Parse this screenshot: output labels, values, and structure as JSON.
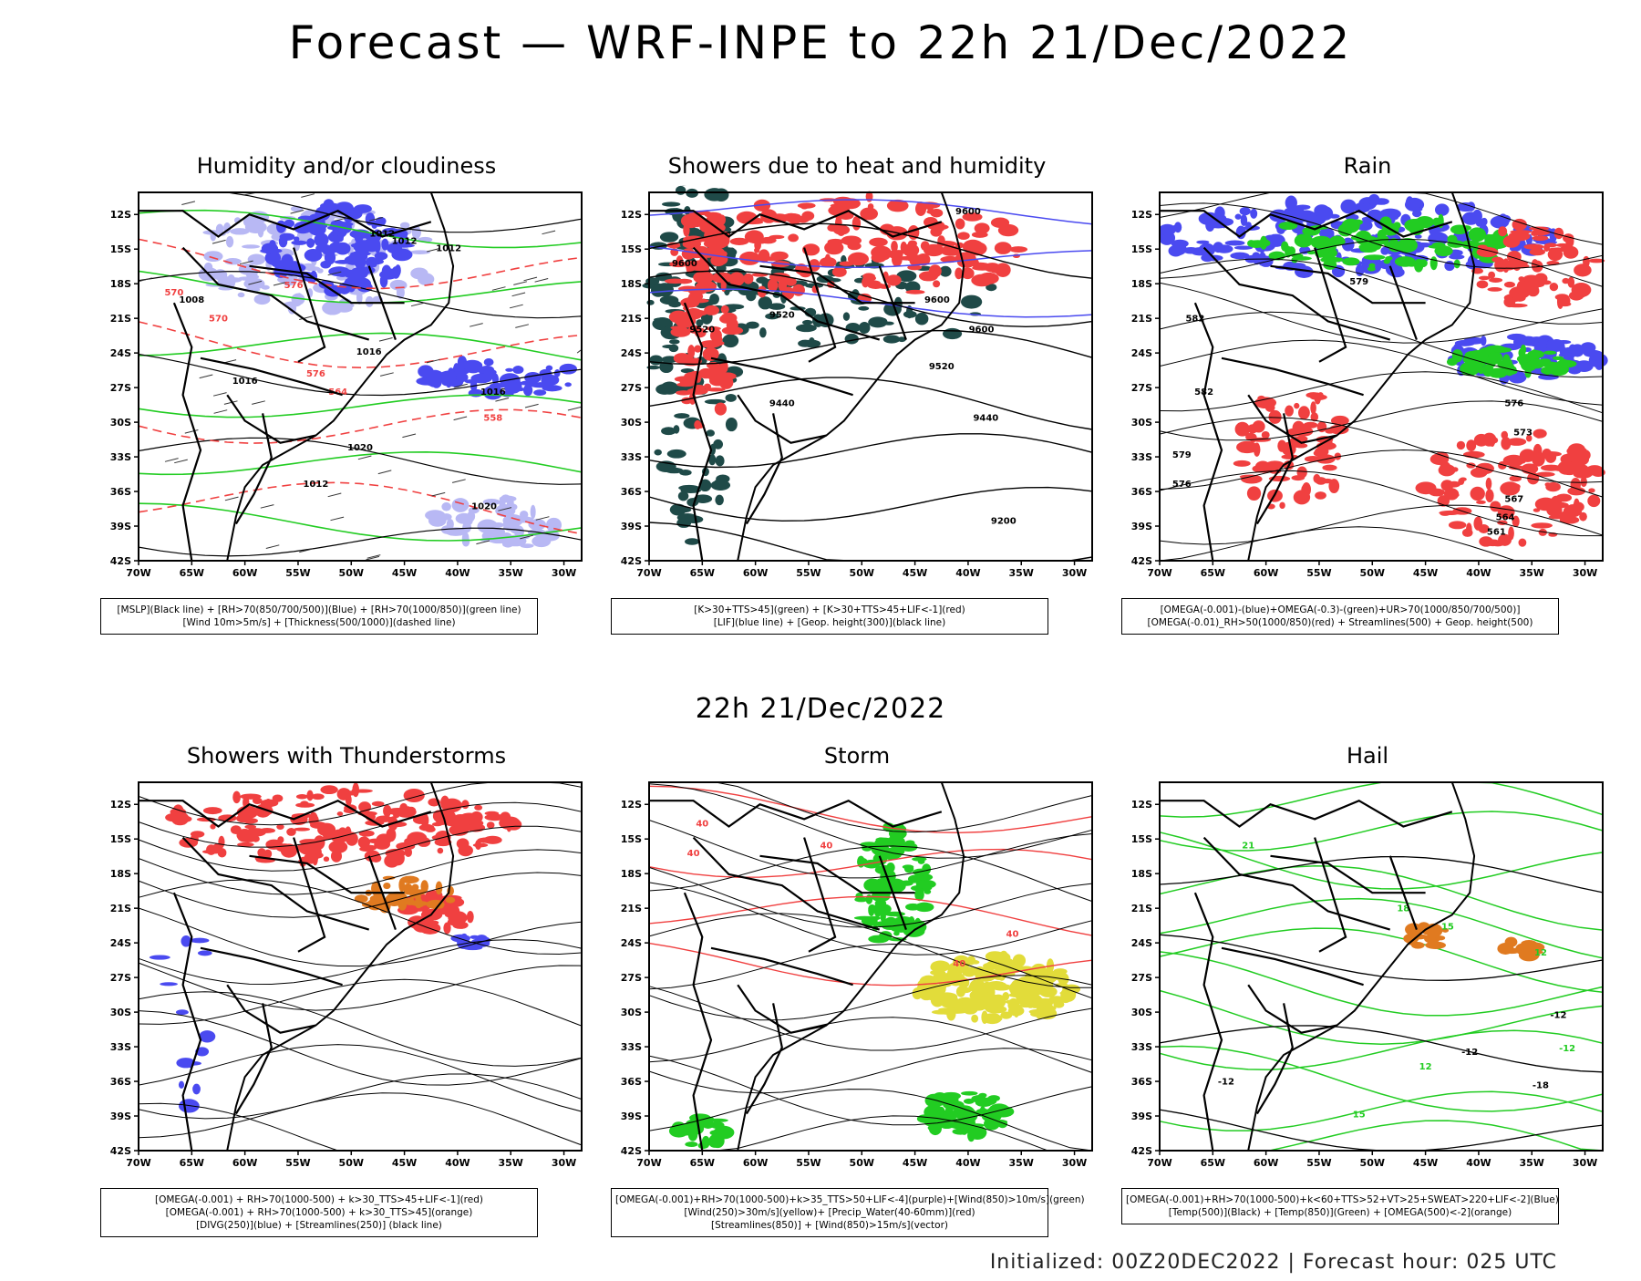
{
  "title": "Forecast — WRF-INPE to 22h 21/Dec/2022",
  "mid_title": "22h 21/Dec/2022",
  "footer": "Initialized: 00Z20DEC2022 | Forecast hour: 025 UTC",
  "axes": {
    "lat_ticks": [
      "12S",
      "15S",
      "18S",
      "21S",
      "24S",
      "27S",
      "30S",
      "33S",
      "36S",
      "39S",
      "42S"
    ],
    "lon_ticks": [
      "70W",
      "65W",
      "60W",
      "55W",
      "50W",
      "45W",
      "40W",
      "35W",
      "30W"
    ]
  },
  "colors": {
    "red": "#f04040",
    "blue": "#4a4af0",
    "green": "#22cc22",
    "lightblue": "#b8b8f4",
    "darkteal": "#1f4a48",
    "orange": "#e07a20",
    "yellow": "#e2dc3a"
  },
  "panels": [
    {
      "title": "Humidity and/or cloudiness",
      "legend": [
        "[MSLP](Black line) + [RH>70(850/700/500)](Blue) + [RH>70(1000/850)](green line)",
        "[Wind 10m>5m/s] + [Thickness(500/1000)](dashed line)"
      ],
      "labels": [
        "1012",
        "1012",
        "1012",
        "1008",
        "1016",
        "1020",
        "1016",
        "1012",
        "1016",
        "1020",
        "570",
        "576",
        "576",
        "564",
        "558",
        "570"
      ]
    },
    {
      "title": "Showers due to heat and humidity",
      "legend": [
        "[K>30+TTS>45](green) + [K>30+TTS>45+LIF<-1](red)",
        "[LIF](blue line) + [Geop. height(300)](black line)"
      ],
      "labels": [
        "9600",
        "9600",
        "9600",
        "9520",
        "9520",
        "9440",
        "9440",
        "9200",
        "9520",
        "9600"
      ]
    },
    {
      "title": "Rain",
      "legend": [
        "[OMEGA(-0.001)-(blue)+OMEGA(-0.3)-(green)+UR>70(1000/850/700/500)]",
        "[OMEGA(-0.01)_RH>50(1000/850)(red) + Streamlines(500) + Geop. height(500)"
      ],
      "labels": [
        "582",
        "579",
        "576",
        "573",
        "567",
        "564",
        "561",
        "582",
        "579",
        "576"
      ]
    },
    {
      "title": "Showers with Thunderstorms",
      "legend": [
        "[OMEGA(-0.001) + RH>70(1000-500) + k>30_TTS>45+LIF<-1](red)",
        "[OMEGA(-0.001) + RH>70(1000-500) + k>30_TTS>45](orange)",
        "[DIVG(250)](blue) + [Streamlines(250)] (black line)"
      ],
      "labels": []
    },
    {
      "title": "Storm",
      "legend": [
        "[OMEGA(-0.001)+RH>70(1000-500)+k>35_TTS>50+LIF<-4](purple)+[Wind(850)>10m/s](green)",
        "[Wind(250)>30m/s](yellow)+ [Precip_Water(40-60mm)](red)",
        "[Streamlines(850)] + [Wind(850)>15m/s](vector)"
      ],
      "labels": [
        "40",
        "40",
        "40",
        "40",
        "40"
      ]
    },
    {
      "title": "Hail",
      "legend": [
        "[OMEGA(-0.001)+RH>70(1000-500)+k<60+TTS>52+VT>25+SWEAT>220+LIF<-2](Blue)",
        "[Temp(500)](Black) + [Temp(850)](Green) + [OMEGA(500)<-2](orange)"
      ],
      "labels": [
        "-12",
        "-12",
        "-12",
        "-18",
        "21",
        "18",
        "15",
        "12",
        "12",
        "-12",
        "15"
      ]
    }
  ]
}
